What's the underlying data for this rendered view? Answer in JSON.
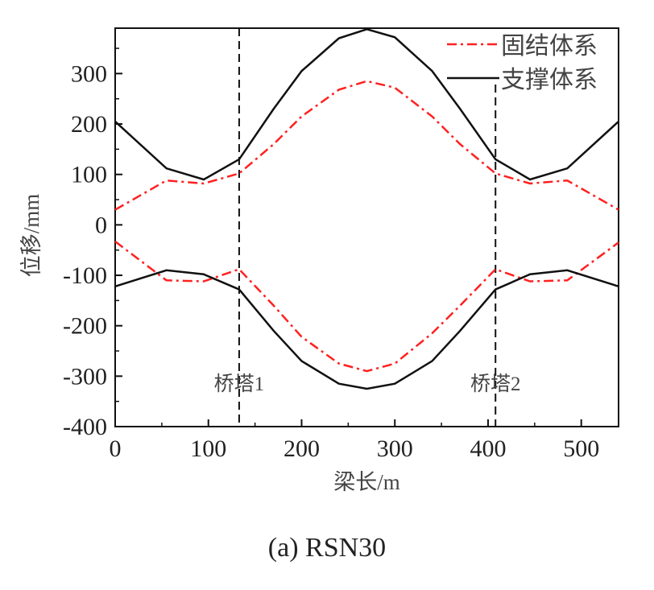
{
  "chart_data": {
    "type": "line",
    "caption": "(a) RSN30",
    "xlabel": "梁长/m",
    "ylabel": "位移/mm",
    "xlim": [
      0,
      540
    ],
    "ylim": [
      -400,
      390
    ],
    "xticks": [
      0,
      100,
      200,
      300,
      400,
      500
    ],
    "yticks": [
      -400,
      -300,
      -200,
      -100,
      0,
      100,
      200,
      300
    ],
    "grid": false,
    "legend_position": "top-right",
    "legend": [
      "固结体系",
      "支撑体系"
    ],
    "vlines": [
      {
        "x": 133,
        "label": "桥塔1"
      },
      {
        "x": 408,
        "label": "桥塔2"
      }
    ],
    "x": [
      0,
      55,
      95,
      133,
      170,
      200,
      240,
      270,
      300,
      340,
      370,
      408,
      445,
      485,
      540
    ],
    "series": [
      {
        "name": "固结体系",
        "style": "dash-dot",
        "color": "#ff2020",
        "upper": [
          30,
          88,
          82,
          102,
          160,
          215,
          268,
          285,
          272,
          215,
          160,
          102,
          82,
          88,
          30
        ],
        "lower": [
          -33,
          -110,
          -112,
          -88,
          -160,
          -222,
          -275,
          -290,
          -275,
          -215,
          -160,
          -88,
          -112,
          -110,
          -35
        ]
      },
      {
        "name": "支撑体系",
        "style": "solid",
        "color": "#111111",
        "upper": [
          205,
          112,
          90,
          130,
          230,
          305,
          370,
          388,
          372,
          305,
          230,
          130,
          90,
          112,
          205
        ],
        "lower": [
          -122,
          -90,
          -98,
          -128,
          -210,
          -270,
          -315,
          -325,
          -315,
          -270,
          -210,
          -128,
          -98,
          -90,
          -122
        ]
      }
    ]
  }
}
